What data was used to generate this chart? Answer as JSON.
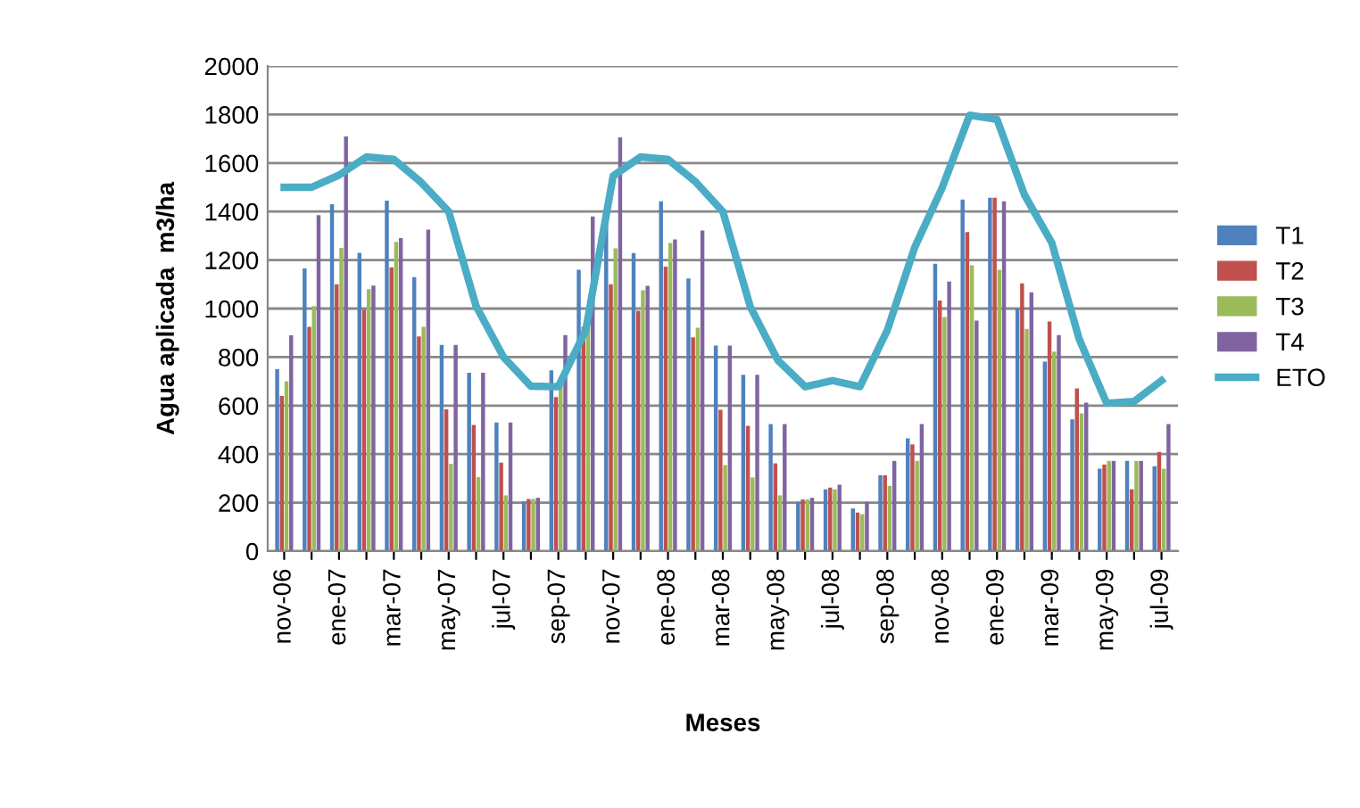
{
  "chart_data": {
    "type": "bar",
    "xlabel": "Meses",
    "ylabel": "Agua aplicada  m3/ha",
    "categories": [
      "nov-06",
      null,
      "ene-07",
      null,
      "mar-07",
      null,
      "may-07",
      null,
      "jul-07",
      null,
      "sep-07",
      null,
      "nov-07",
      null,
      "ene-08",
      null,
      "mar-08",
      null,
      "may-08",
      null,
      "jul-08",
      null,
      "sep-08",
      null,
      "nov-08",
      null,
      "ene-09",
      null,
      "mar-09",
      null,
      "may-09",
      null,
      "jul-09"
    ],
    "series": [
      {
        "name": "T1",
        "color": "#4f81bd",
        "values": [
          750,
          1165,
          1430,
          1230,
          1445,
          1130,
          850,
          735,
          530,
          205,
          745,
          1160,
          1430,
          1229,
          1442,
          1124,
          847,
          727,
          524,
          203,
          255,
          176,
          313,
          465,
          1185,
          1449,
          1457,
          1001,
          781,
          543,
          340,
          372,
          350
        ]
      },
      {
        "name": "T2",
        "color": "#c0504d",
        "values": [
          640,
          925,
          1100,
          995,
          1170,
          885,
          585,
          520,
          365,
          215,
          635,
          925,
          1100,
          991,
          1173,
          881,
          583,
          517,
          362,
          213,
          262,
          159,
          313,
          440,
          1033,
          1315,
          1457,
          1104,
          947,
          671,
          357,
          255,
          409
        ]
      },
      {
        "name": "T3",
        "color": "#9bbb59",
        "values": [
          700,
          1010,
          1250,
          1080,
          1275,
          925,
          360,
          305,
          230,
          215,
          700,
          1008,
          1248,
          1075,
          1270,
          921,
          355,
          304,
          230,
          213,
          255,
          152,
          269,
          372,
          965,
          1178,
          1160,
          916,
          823,
          568,
          372,
          372,
          340
        ]
      },
      {
        "name": "T4",
        "color": "#8064a2",
        "values": [
          890,
          1385,
          1710,
          1095,
          1290,
          1325,
          850,
          735,
          530,
          220,
          891,
          1380,
          1706,
          1094,
          1285,
          1322,
          847,
          727,
          524,
          220,
          274,
          203,
          372,
          524,
          1111,
          950,
          1442,
          1067,
          891,
          612,
          372,
          372,
          524
        ]
      },
      {
        "name": "ETO",
        "type": "line",
        "color": "#4bacc6",
        "values": [
          1500,
          1500,
          1550,
          1625,
          1615,
          1520,
          1400,
          1010,
          800,
          680,
          678,
          911,
          1547,
          1625,
          1615,
          1523,
          1400,
          1008,
          788,
          678,
          703,
          678,
          911,
          1253,
          1498,
          1797,
          1780,
          1469,
          1271,
          874,
          610,
          617,
          703
        ]
      }
    ],
    "ylim": [
      0,
      2000
    ],
    "yticks": [
      0,
      200,
      400,
      600,
      800,
      1000,
      1200,
      1400,
      1600,
      1800,
      2000
    ],
    "grid": "y",
    "legend": "right"
  }
}
